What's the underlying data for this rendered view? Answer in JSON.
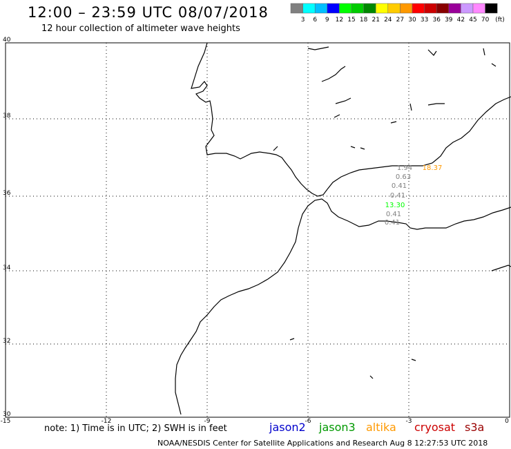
{
  "title": "12:00 – 23:59 UTC 08/07/2018",
  "subtitle": "12 hour collection of altimeter wave heights",
  "legend": {
    "unit": "(ft)",
    "bins": [
      {
        "label": "3",
        "color": "#808080"
      },
      {
        "label": "6",
        "color": "#00ffff"
      },
      {
        "label": "9",
        "color": "#00bfff"
      },
      {
        "label": "12",
        "color": "#0000ff"
      },
      {
        "label": "15",
        "color": "#00ff00"
      },
      {
        "label": "18",
        "color": "#00cc00"
      },
      {
        "label": "21",
        "color": "#008800"
      },
      {
        "label": "24",
        "color": "#ffff00"
      },
      {
        "label": "27",
        "color": "#ffcc00"
      },
      {
        "label": "30",
        "color": "#ff9900"
      },
      {
        "label": "33",
        "color": "#ff0000"
      },
      {
        "label": "36",
        "color": "#cc0000"
      },
      {
        "label": "39",
        "color": "#880000"
      },
      {
        "label": "42",
        "color": "#990099"
      },
      {
        "label": "45",
        "color": "#cc99ff"
      },
      {
        "label": "70",
        "color": "#ff88ff"
      },
      {
        "label": "",
        "color": "#000000"
      }
    ]
  },
  "axes": {
    "lon_labels": [
      "-15",
      "-12",
      "-9",
      "-6",
      "-3",
      "0"
    ],
    "lat_labels": [
      "40",
      "38",
      "36",
      "34",
      "32",
      "30"
    ]
  },
  "observations": [
    {
      "value": "1.94",
      "color": "#808080"
    },
    {
      "value": "18.37",
      "color": "#ff9900"
    },
    {
      "value": "0.63",
      "color": "#808080"
    },
    {
      "value": "0.41",
      "color": "#808080"
    },
    {
      "value": "0.41",
      "color": "#808080"
    },
    {
      "value": "13.30",
      "color": "#00ff00"
    },
    {
      "value": "0.41",
      "color": "#808080"
    },
    {
      "value": "0.41",
      "color": "#808080"
    }
  ],
  "note": "note: 1) Time is in UTC; 2) SWH is in feet",
  "satellites": [
    {
      "name": "jason2",
      "color": "#0000cc"
    },
    {
      "name": "jason3",
      "color": "#009900"
    },
    {
      "name": "altika",
      "color": "#ff9900"
    },
    {
      "name": "cryosat",
      "color": "#cc0000"
    },
    {
      "name": "s3a",
      "color": "#990000"
    }
  ],
  "credit": "NOAA/NESDIS Center for Satellite Applications and Research    Aug  8 12:27:53 UTC 2018"
}
